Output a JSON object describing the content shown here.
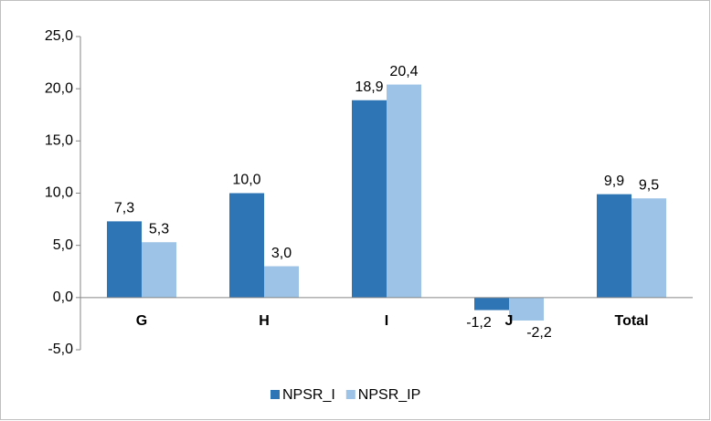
{
  "chart_data": {
    "type": "bar",
    "categories": [
      "G",
      "H",
      "I",
      "J",
      "Total"
    ],
    "series": [
      {
        "name": "NPSR_I",
        "color": "#2e75b6",
        "values": [
          7.3,
          10.0,
          18.9,
          -1.2,
          9.9
        ],
        "value_labels": [
          "7,3",
          "10,0",
          "18,9",
          "-1,2",
          "9,9"
        ]
      },
      {
        "name": "NPSR_IP",
        "color": "#9dc3e6",
        "values": [
          5.3,
          3.0,
          20.4,
          -2.2,
          9.5
        ],
        "value_labels": [
          "5,3",
          "3,0",
          "20,4",
          "-2,2",
          "9,5"
        ]
      }
    ],
    "ylim": [
      -5,
      25
    ],
    "yticks": [
      {
        "value": -5,
        "label": "-5,0"
      },
      {
        "value": 0,
        "label": "0,0"
      },
      {
        "value": 5,
        "label": "5,0"
      },
      {
        "value": 10,
        "label": "10,0"
      },
      {
        "value": 15,
        "label": "15,0"
      },
      {
        "value": 20,
        "label": "20,0"
      },
      {
        "value": 25,
        "label": "25,0"
      }
    ],
    "grid": false,
    "legend": "bottom"
  }
}
